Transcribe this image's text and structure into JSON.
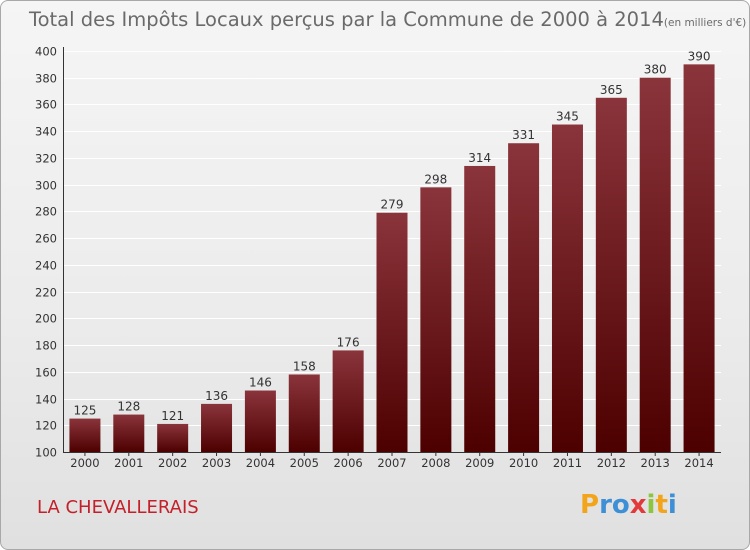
{
  "header": {
    "title": "Total des Impôts Locaux perçus par la Commune de 2000 à 2014",
    "unit": "(en milliers d'€)"
  },
  "footer": {
    "commune": "LA CHEVALLERAIS"
  },
  "logo": {
    "letters": [
      "P",
      "r",
      "o",
      "x",
      "i",
      "t",
      "i"
    ],
    "colors": [
      "#f2a51a",
      "#3d8fd6",
      "#3d8fd6",
      "#e23a3a",
      "#8cc63f",
      "#f2a51a",
      "#3d8fd6"
    ]
  },
  "colors": {
    "bar_top": "#8a343b",
    "bar_bottom": "#4d0000",
    "grid": "#ffffff",
    "axis": "#333333"
  },
  "chart_data": {
    "type": "bar",
    "categories": [
      "2000",
      "2001",
      "2002",
      "2003",
      "2004",
      "2005",
      "2006",
      "2007",
      "2008",
      "2009",
      "2010",
      "2011",
      "2012",
      "2013",
      "2014"
    ],
    "values": [
      125,
      128,
      121,
      136,
      146,
      158,
      176,
      279,
      298,
      314,
      331,
      345,
      365,
      380,
      390
    ],
    "ylim": [
      100,
      400
    ],
    "yticks": [
      100,
      120,
      140,
      160,
      180,
      200,
      220,
      240,
      260,
      280,
      300,
      320,
      340,
      360,
      380,
      400
    ],
    "grid": true,
    "data_labels": true
  }
}
